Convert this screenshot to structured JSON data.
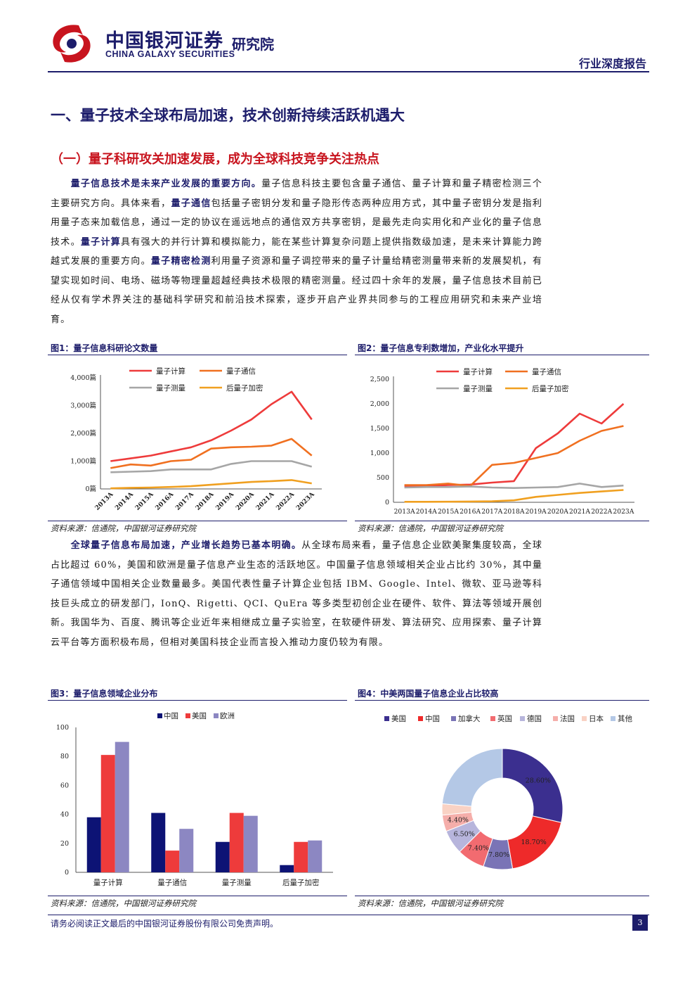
{
  "header": {
    "brand_cn": "中国银河证券",
    "brand_en": "CHINA GALAXY SECURITIES",
    "brand_inst": "研究院",
    "report_type": "行业深度报告"
  },
  "section_title": "一、量子技术全球布局加速，技术创新持续活跃机遇大",
  "subsection_title": "（一）量子科研攻关加速发展，成为全球科技竞争关注热点",
  "para1": [
    {
      "t": "量子信息技术是未来产业发展的重要方向。",
      "b": true
    },
    {
      "t": "量子信息科技主要包含量子通信、量子计算和量子精密检测三个主要研究方向。具体来看，",
      "b": false
    },
    {
      "t": "量子通信",
      "b": true
    },
    {
      "t": "包括量子密钥分发和量子隐形传态两种应用方式，其中量子密钥分发是指利用量子态来加载信息，通过一定的协议在遥远地点的通信双方共享密钥，是最先走向实用化和产业化的量子信息技术。",
      "b": false
    },
    {
      "t": "量子计算",
      "b": true
    },
    {
      "t": "具有强大的并行计算和模拟能力，能在某些计算复杂问题上提供指数级加速，是未来计算能力跨越式发展的重要方向。",
      "b": false
    },
    {
      "t": "量子精密检测",
      "b": true
    },
    {
      "t": "利用量子资源和量子调控带来的量子计量给精密测量带来新的发展契机，有望实现如时间、电场、磁场等物理量超越经典技术极限的精密测量。经过四十余年的发展，量子信息技术目前已经从仅有学术界关注的基础科学研究和前沿技术探索，逐步开启产业界共同参与的工程应用研究和未来产业培育。",
      "b": false
    }
  ],
  "para2": [
    {
      "t": "全球量子信息布局加速，产业增长趋势已基本明确。",
      "b": true
    },
    {
      "t": "从全球布局来看，量子信息企业欧美聚集度较高，全球占比超过 60%，美国和欧洲是量子信息产业生态的活跃地区。中国量子信息领域相关企业占比约 30%，其中量子通信领域中国相关企业数量最多。美国代表性量子计算企业包括 IBM、Google、Intel、微软、亚马逊等科技巨头成立的研发部门，IonQ、Rigetti、QCI、QuEra 等多类型初创企业在硬件、软件、算法等领域开展创新。我国华为、百度、腾讯等企业近年来相继成立量子实验室，在软硬件研发、算法研究、应用探索、量子计算云平台等方面积极布局，但相对美国科技企业而言投入推动力度仍较为有限。",
      "b": false
    }
  ],
  "figures": {
    "fig1_title": "图1：量子信息科研论文数量",
    "fig2_title": "图2：量子信息专利数增加，产业化水平提升",
    "fig3_title": "图3：量子信息领域企业分布",
    "fig4_title": "图4：中美两国量子信息企业占比较高",
    "source": "资料来源：信通院，中国银河证券研究院"
  },
  "colors": {
    "navy": "#1d1d6b",
    "red": "#ee3b3b",
    "orange": "#f07020",
    "gray": "#a6a6a6",
    "gold": "#f0a020"
  },
  "chart_data": [
    {
      "type": "line",
      "x": [
        "2013A",
        "2014A",
        "2015A",
        "2016A",
        "2017A",
        "2018A",
        "2019A",
        "2020A",
        "2021A",
        "2022A",
        "2023A"
      ],
      "tick_labels": [
        "0篇",
        "1,000篇",
        "2,000篇",
        "3,000篇",
        "4,000篇"
      ],
      "ylim": [
        0,
        4000
      ],
      "legend": "top",
      "series": [
        {
          "name": "量子计算",
          "color": "#ee3b3b",
          "values": [
            1000,
            1100,
            1200,
            1350,
            1500,
            1750,
            2100,
            2500,
            3050,
            3500,
            2500
          ]
        },
        {
          "name": "量子通信",
          "color": "#f07020",
          "values": [
            750,
            880,
            840,
            1000,
            1050,
            1450,
            1500,
            1520,
            1560,
            1800,
            1200
          ]
        },
        {
          "name": "量子测量",
          "color": "#a6a6a6",
          "values": [
            600,
            620,
            640,
            700,
            700,
            700,
            900,
            1000,
            1000,
            1000,
            800
          ]
        },
        {
          "name": "后量子加密",
          "color": "#f0a020",
          "values": [
            20,
            40,
            50,
            70,
            100,
            150,
            200,
            250,
            280,
            320,
            200
          ]
        }
      ]
    },
    {
      "type": "line",
      "x": [
        "2013A",
        "2014A",
        "2015A",
        "2016A",
        "2017A",
        "2018A",
        "2019A",
        "2020A",
        "2021A",
        "2022A",
        "2023A"
      ],
      "tick_labels": [
        "0",
        "500",
        "1,000",
        "1,500",
        "2,000",
        "2,500"
      ],
      "ylim": [
        0,
        2500
      ],
      "legend": "top",
      "series": [
        {
          "name": "量子计算",
          "color": "#ee3b3b",
          "values": [
            330,
            340,
            350,
            360,
            400,
            430,
            1100,
            1400,
            1800,
            1600,
            2000
          ]
        },
        {
          "name": "量子通信",
          "color": "#f07020",
          "values": [
            350,
            350,
            380,
            330,
            760,
            800,
            900,
            1000,
            1250,
            1450,
            1550
          ]
        },
        {
          "name": "量子测量",
          "color": "#a6a6a6",
          "values": [
            300,
            310,
            310,
            320,
            300,
            290,
            300,
            310,
            380,
            310,
            340
          ]
        },
        {
          "name": "后量子加密",
          "color": "#f0a020",
          "values": [
            10,
            10,
            12,
            15,
            20,
            40,
            110,
            150,
            190,
            220,
            250
          ]
        }
      ]
    },
    {
      "type": "bar",
      "categories": [
        "量子计算",
        "量子通信",
        "量子测量",
        "后量子加密"
      ],
      "ylim": [
        0,
        100
      ],
      "tick_labels": [
        "0",
        "20",
        "40",
        "60",
        "80",
        "100"
      ],
      "legend": "top",
      "series": [
        {
          "name": "中国",
          "color": "#0d1375",
          "values": [
            38,
            41,
            21,
            5
          ]
        },
        {
          "name": "美国",
          "color": "#ee3b3b",
          "values": [
            81,
            15,
            41,
            21
          ]
        },
        {
          "name": "欧洲",
          "color": "#8c87c2",
          "values": [
            90,
            30,
            39,
            22
          ]
        }
      ]
    },
    {
      "type": "pie",
      "legend": "top",
      "slices": [
        {
          "name": "美国",
          "value": 28.6,
          "label": "28.60%",
          "color": "#3b2f8f"
        },
        {
          "name": "中国",
          "value": 18.7,
          "label": "18.70%",
          "color": "#ee2a2a"
        },
        {
          "name": "加拿大",
          "value": 7.8,
          "label": "7.80%",
          "color": "#7a74b6"
        },
        {
          "name": "英国",
          "value": 7.4,
          "label": "7.40%",
          "color": "#f26b70"
        },
        {
          "name": "德国",
          "value": 6.5,
          "label": "6.50%",
          "color": "#b7b5dc"
        },
        {
          "name": "法国",
          "value": 4.4,
          "label": "4.40%",
          "color": "#f5aeaa"
        },
        {
          "name": "日本",
          "value": 3.0,
          "label": "",
          "color": "#f9d2c4"
        },
        {
          "name": "其他",
          "value": 23.6,
          "label": "",
          "color": "#b4c8e6"
        }
      ]
    }
  ],
  "footer": {
    "disclaimer": "请务必阅读正文最后的中国银河证券股份有限公司免责声明。",
    "page": "3"
  }
}
